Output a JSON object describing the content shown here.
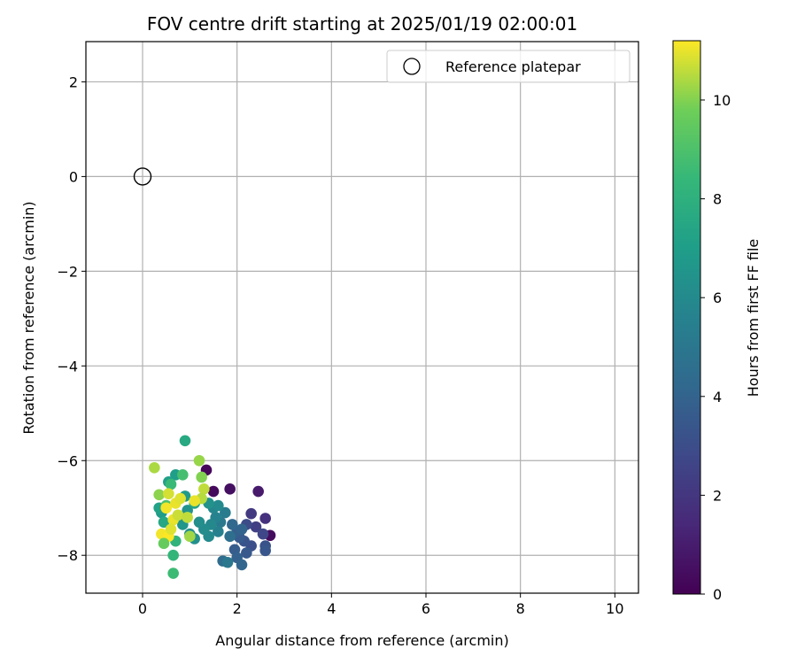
{
  "chart_data": {
    "type": "scatter",
    "title": "FOV centre drift starting at 2025/01/19 02:00:01",
    "xlabel": "Angular distance from reference (arcmin)",
    "ylabel": "Rotation from reference (arcmin)",
    "xlim": [
      -1.2,
      10.5
    ],
    "ylim": [
      -8.8,
      2.85
    ],
    "xticks": [
      0,
      2,
      4,
      6,
      8,
      10
    ],
    "yticks": [
      2,
      0,
      -2,
      -4,
      -6,
      -8
    ],
    "xtick_labels": [
      "0",
      "2",
      "4",
      "6",
      "8",
      "10"
    ],
    "ytick_labels": [
      "2",
      "0",
      "−2",
      "−4",
      "−6",
      "−8"
    ],
    "grid": true,
    "legend": {
      "placement": "top-right",
      "entries": [
        {
          "label": "Reference platepar",
          "marker": "open-circle"
        }
      ]
    },
    "reference_point": {
      "x": 0,
      "y": 0
    },
    "colorbar": {
      "label": "Hours from first FF file",
      "colormap": "viridis",
      "range": [
        0,
        11.2
      ],
      "ticks": [
        0,
        2,
        4,
        6,
        8,
        10
      ],
      "tick_labels": [
        "0",
        "2",
        "4",
        "6",
        "8",
        "10"
      ]
    },
    "points": [
      {
        "x": 1.35,
        "y": -6.2,
        "c": 0.2
      },
      {
        "x": 1.5,
        "y": -6.65,
        "c": 0.3
      },
      {
        "x": 1.85,
        "y": -6.6,
        "c": 0.5
      },
      {
        "x": 2.45,
        "y": -6.65,
        "c": 0.9
      },
      {
        "x": 2.7,
        "y": -7.58,
        "c": 0.4
      },
      {
        "x": 2.6,
        "y": -7.22,
        "c": 1.8
      },
      {
        "x": 2.3,
        "y": -7.12,
        "c": 2.1
      },
      {
        "x": 2.4,
        "y": -7.4,
        "c": 2.4
      },
      {
        "x": 2.55,
        "y": -7.55,
        "c": 2.7
      },
      {
        "x": 2.6,
        "y": -7.8,
        "c": 3.2
      },
      {
        "x": 2.6,
        "y": -7.9,
        "c": 3.4
      },
      {
        "x": 2.2,
        "y": -7.35,
        "c": 2.9
      },
      {
        "x": 2.3,
        "y": -7.8,
        "c": 3.1
      },
      {
        "x": 2.15,
        "y": -7.7,
        "c": 3.3
      },
      {
        "x": 2.2,
        "y": -7.95,
        "c": 3.5
      },
      {
        "x": 2.05,
        "y": -7.62,
        "c": 3.6
      },
      {
        "x": 2.0,
        "y": -7.5,
        "c": 3.8
      },
      {
        "x": 1.95,
        "y": -7.88,
        "c": 3.7
      },
      {
        "x": 2.0,
        "y": -8.05,
        "c": 3.9
      },
      {
        "x": 2.1,
        "y": -8.2,
        "c": 4.1
      },
      {
        "x": 1.9,
        "y": -7.35,
        "c": 4.2
      },
      {
        "x": 1.7,
        "y": -8.12,
        "c": 4.4
      },
      {
        "x": 1.85,
        "y": -7.6,
        "c": 4.6
      },
      {
        "x": 2.1,
        "y": -7.45,
        "c": 4.0
      },
      {
        "x": 1.8,
        "y": -8.15,
        "c": 5.0
      },
      {
        "x": 1.65,
        "y": -7.3,
        "c": 5.1
      },
      {
        "x": 1.75,
        "y": -7.1,
        "c": 5.3
      },
      {
        "x": 1.6,
        "y": -7.5,
        "c": 5.5
      },
      {
        "x": 1.55,
        "y": -7.2,
        "c": 5.6
      },
      {
        "x": 1.5,
        "y": -7.0,
        "c": 5.8
      },
      {
        "x": 1.45,
        "y": -7.35,
        "c": 5.9
      },
      {
        "x": 1.4,
        "y": -7.6,
        "c": 6.0
      },
      {
        "x": 1.3,
        "y": -7.45,
        "c": 6.1
      },
      {
        "x": 1.2,
        "y": -7.3,
        "c": 6.2
      },
      {
        "x": 1.1,
        "y": -7.65,
        "c": 6.3
      },
      {
        "x": 1.0,
        "y": -7.55,
        "c": 6.2
      },
      {
        "x": 1.6,
        "y": -6.95,
        "c": 6.0
      },
      {
        "x": 1.4,
        "y": -6.9,
        "c": 6.4
      },
      {
        "x": 0.95,
        "y": -7.05,
        "c": 6.5
      },
      {
        "x": 0.85,
        "y": -7.35,
        "c": 6.6
      },
      {
        "x": 0.75,
        "y": -7.2,
        "c": 6.7
      },
      {
        "x": 0.9,
        "y": -6.75,
        "c": 6.8
      },
      {
        "x": 0.7,
        "y": -6.3,
        "c": 7.0
      },
      {
        "x": 0.55,
        "y": -6.45,
        "c": 7.1
      },
      {
        "x": 0.4,
        "y": -7.1,
        "c": 6.9
      },
      {
        "x": 0.35,
        "y": -7.0,
        "c": 7.2
      },
      {
        "x": 0.9,
        "y": -5.58,
        "c": 7.6
      },
      {
        "x": 1.1,
        "y": -6.9,
        "c": 7.3
      },
      {
        "x": 0.45,
        "y": -7.3,
        "c": 7.5
      },
      {
        "x": 0.65,
        "y": -8.0,
        "c": 8.3
      },
      {
        "x": 0.7,
        "y": -7.7,
        "c": 8.2
      },
      {
        "x": 0.65,
        "y": -8.38,
        "c": 8.6
      },
      {
        "x": 0.85,
        "y": -6.3,
        "c": 8.8
      },
      {
        "x": 0.6,
        "y": -6.5,
        "c": 8.5
      },
      {
        "x": 0.5,
        "y": -6.95,
        "c": 9.0
      },
      {
        "x": 1.2,
        "y": -6.0,
        "c": 10.2
      },
      {
        "x": 1.25,
        "y": -6.35,
        "c": 10.0
      },
      {
        "x": 0.25,
        "y": -6.15,
        "c": 10.4
      },
      {
        "x": 0.35,
        "y": -6.72,
        "c": 10.1
      },
      {
        "x": 1.3,
        "y": -6.6,
        "c": 10.6
      },
      {
        "x": 1.25,
        "y": -6.8,
        "c": 10.5
      },
      {
        "x": 0.55,
        "y": -6.7,
        "c": 10.8
      },
      {
        "x": 0.7,
        "y": -6.9,
        "c": 11.0
      },
      {
        "x": 0.5,
        "y": -7.0,
        "c": 11.1
      },
      {
        "x": 0.8,
        "y": -6.8,
        "c": 10.9
      },
      {
        "x": 0.65,
        "y": -7.25,
        "c": 11.0
      },
      {
        "x": 0.4,
        "y": -7.55,
        "c": 11.1
      },
      {
        "x": 0.55,
        "y": -7.6,
        "c": 11.2
      },
      {
        "x": 0.75,
        "y": -7.15,
        "c": 10.7
      },
      {
        "x": 1.0,
        "y": -7.6,
        "c": 10.3
      },
      {
        "x": 0.95,
        "y": -7.2,
        "c": 10.6
      },
      {
        "x": 1.1,
        "y": -6.85,
        "c": 11.0
      },
      {
        "x": 0.45,
        "y": -7.75,
        "c": 9.6
      },
      {
        "x": 0.6,
        "y": -7.45,
        "c": 10.9
      }
    ]
  }
}
